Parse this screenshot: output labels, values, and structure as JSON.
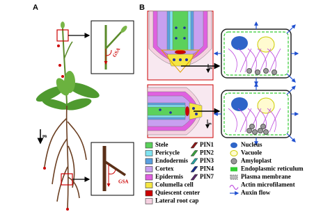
{
  "panel_a": {
    "label": "A",
    "gravity": "g",
    "gsa_top": "GSA",
    "gsa_bottom": "GSA"
  },
  "panel_b": {
    "label": "B",
    "gravity_top": "g",
    "gravity_bottom": "g",
    "legend": {
      "tissues": [
        "Stele",
        "Pericycle",
        "Endodermis",
        "Cortex",
        "Epidermis",
        "Columella cell",
        "Quiescent center",
        "Lateral root cap"
      ],
      "pins": [
        "PIN1",
        "PIN2",
        "PIN3",
        "PIN4",
        "PIN7"
      ],
      "organelles": [
        "Nucleus",
        "Vacuole",
        "Amyloplast",
        "Endoplasmic reticulum",
        "Plasma membrane",
        "Actin microfilament",
        "Auxin flow"
      ]
    }
  }
}
